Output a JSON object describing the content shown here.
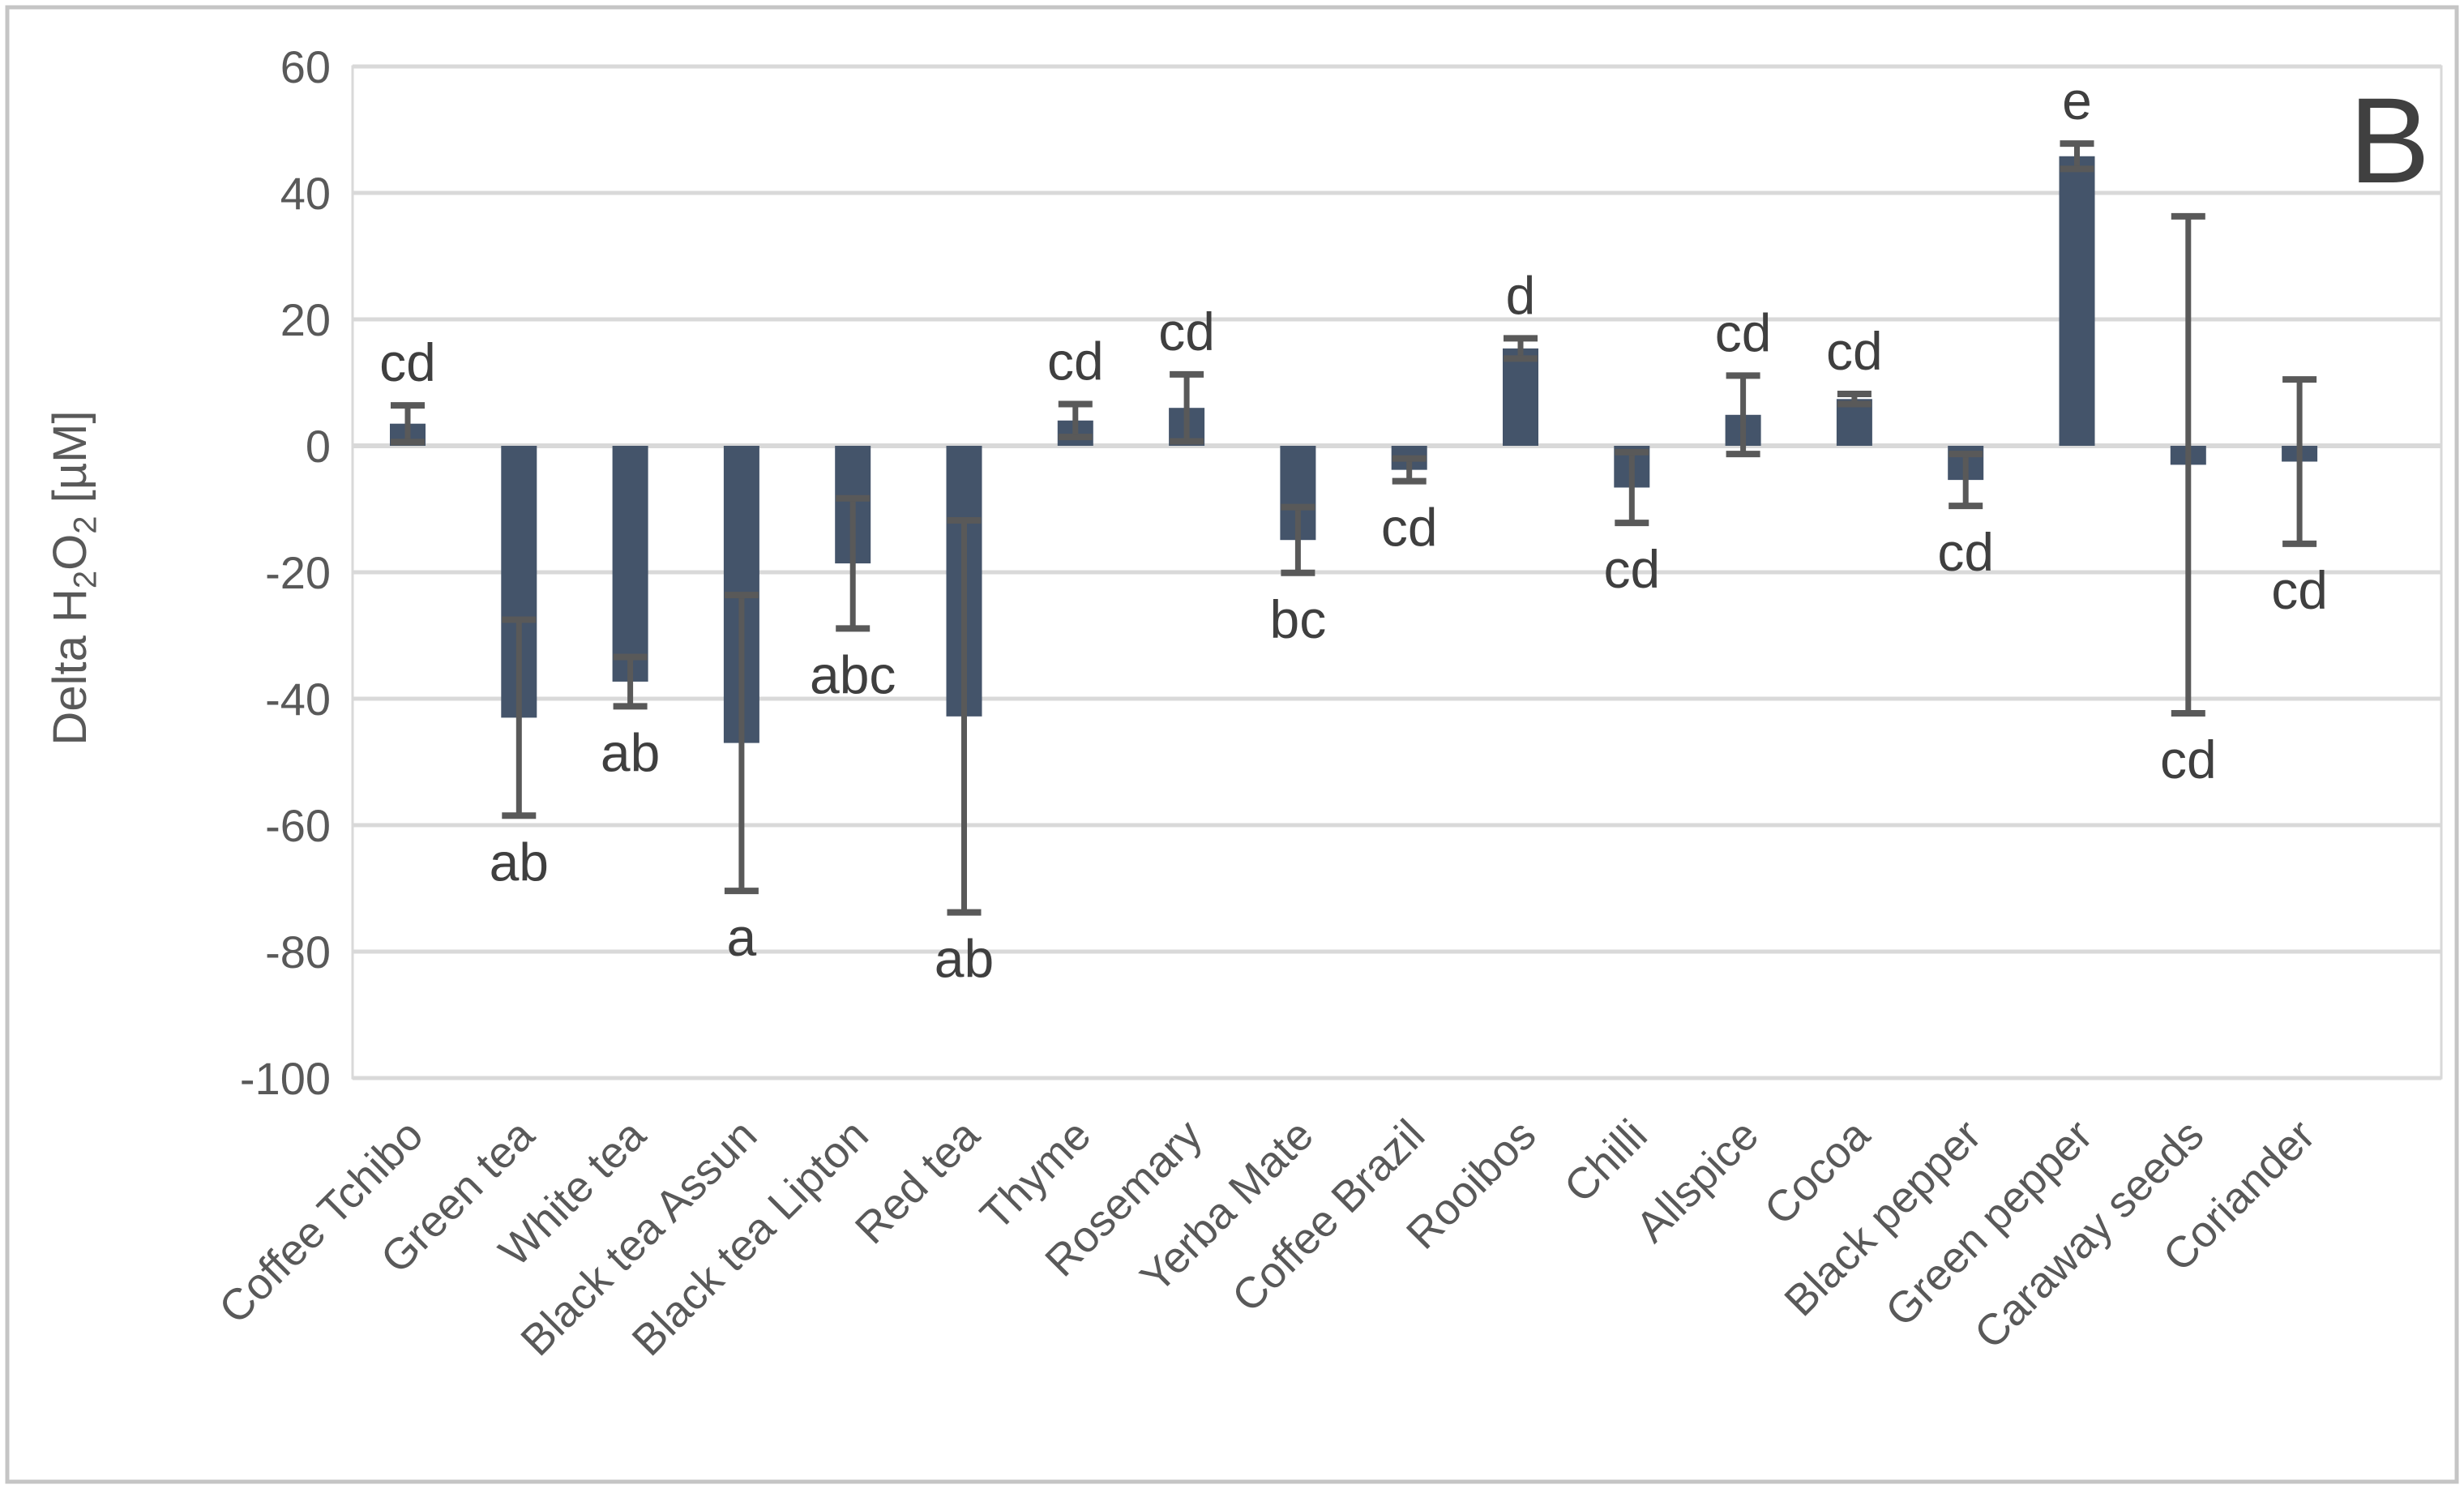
{
  "chart_data": {
    "type": "bar",
    "panel_label": "B",
    "title": "",
    "xlabel": "",
    "ylabel": "Delta H2O2 [µM]",
    "ylabel_parts": [
      {
        "t": "Delta H",
        "sub": false
      },
      {
        "t": "2",
        "sub": true
      },
      {
        "t": "O",
        "sub": false
      },
      {
        "t": "2",
        "sub": true
      },
      {
        "t": " [µM]",
        "sub": false
      }
    ],
    "ylim": [
      -100,
      60
    ],
    "ytick_step": 20,
    "ytick_labels": [
      "60",
      "40",
      "20",
      "0",
      "-20",
      "-40",
      "-60",
      "-80",
      "-100"
    ],
    "grid": true,
    "legend": "none",
    "categories": [
      "Coffee Tchibo",
      "Green tea",
      "White tea",
      "Black tea Assun",
      "Black tea Lipton",
      "Red tea",
      "Thyme",
      "Rosemary",
      "Yerba Mate",
      "Coffee Brazil",
      "Rooibos",
      "Chilli",
      "Allspice",
      "Cocoa",
      "Black pepper",
      "Green pepper",
      "Caraway seeds",
      "Coriander"
    ],
    "values": [
      3.5,
      -43,
      -37.3,
      -47,
      -18.6,
      -42.8,
      4.0,
      6.0,
      -14.9,
      -3.8,
      15.4,
      -6.6,
      4.9,
      7.4,
      -5.4,
      45.8,
      -3.0,
      -2.5
    ],
    "errors": [
      2.9,
      15.5,
      3.9,
      23.4,
      10.3,
      31.0,
      2.6,
      5.3,
      5.2,
      1.8,
      1.6,
      5.6,
      6.2,
      0.8,
      4.1,
      2.0,
      39.3,
      13.0
    ],
    "sig_letters": [
      "cd",
      "ab",
      "ab",
      "a",
      "abc",
      "ab",
      "cd",
      "cd",
      "bc",
      "cd",
      "d",
      "cd",
      "cd",
      "cd",
      "cd",
      "e",
      "cd",
      "cd"
    ],
    "colors": {
      "bar": "#44546A",
      "error": "#595959",
      "grid": "#D9D9D9",
      "tick": "#595959",
      "letter": "#3F3F3F",
      "panel": "#404040",
      "frame": "#C5C5C5"
    }
  }
}
